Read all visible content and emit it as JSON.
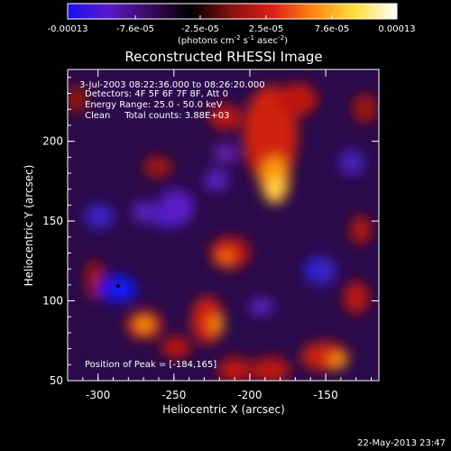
{
  "colorbar": {
    "tick_labels": [
      "-0.00013",
      "-7.6e-05",
      "-2.5e-05",
      "2.5e-05",
      "7.6e-05",
      "0.00013"
    ],
    "units_label": "(photons cm",
    "units_exp1": "-2",
    "units_mid": " s",
    "units_exp2": "-1",
    "units_tail": " asec",
    "units_exp3": "-2",
    "units_close": ")",
    "colors": [
      "#1a10f0",
      "#5a1ac8",
      "#3a0a60",
      "#000000",
      "#8a1010",
      "#e02018",
      "#ff8a10",
      "#ffe040",
      "#ffffff"
    ]
  },
  "title": "Reconstructed RHESSI Image",
  "annotations": {
    "time_range": "3-Jul-2003 08:22:36.000 to 08:26:20.000",
    "detectors": "Detectors: 4F 5F 6F 7F 8F, Att 0",
    "energy": "Energy Range: 25.0 - 50.0 keV",
    "clean": "Clean     Total counts: 3.88E+03",
    "peak": "Position of Peak = [-184,165]"
  },
  "axes": {
    "xlabel": "Heliocentric X (arcsec)",
    "ylabel": "Heliocentric Y (arcsec)",
    "x_ticks": [
      "-300",
      "-250",
      "-200",
      "-150"
    ],
    "y_ticks": [
      "200",
      "150",
      "100",
      "50"
    ],
    "xlim": [
      -320,
      -115
    ],
    "ylim": [
      50,
      245
    ]
  },
  "timestamp": "22-May-2013 23:47"
}
